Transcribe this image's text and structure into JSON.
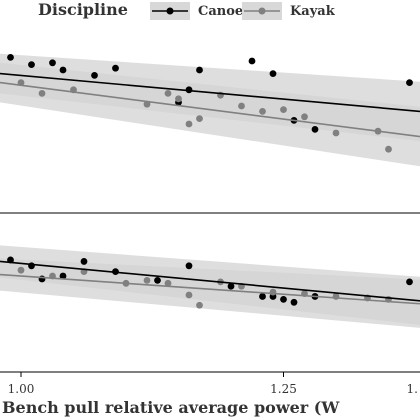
{
  "legend": {
    "title": "Discipline",
    "entries": [
      {
        "label": "Canoe",
        "color": "#000000"
      },
      {
        "label": "Kayak",
        "color": "#808080"
      }
    ]
  },
  "chart_data": [
    {
      "type": "scatter",
      "panel": "top",
      "xlim": [
        0.98,
        1.38
      ],
      "ylim": [
        0,
        10
      ],
      "grid": false,
      "ribbon_color": "#d3d3d3",
      "series": [
        {
          "name": "Canoe",
          "color": "#000000",
          "points": [
            [
              0.99,
              8.2
            ],
            [
              1.01,
              7.8
            ],
            [
              1.03,
              7.9
            ],
            [
              1.04,
              7.5
            ],
            [
              1.09,
              7.6
            ],
            [
              1.16,
              6.4
            ],
            [
              1.17,
              7.5
            ],
            [
              1.22,
              8.0
            ],
            [
              1.24,
              7.3
            ],
            [
              1.26,
              4.7
            ],
            [
              1.28,
              4.2
            ],
            [
              1.37,
              6.8
            ],
            [
              1.07,
              7.2
            ],
            [
              1.15,
              5.7
            ]
          ],
          "fit": {
            "x": [
              0.98,
              1.38
            ],
            "y": [
              7.3,
              5.2
            ]
          }
        },
        {
          "name": "Kayak",
          "color": "#808080",
          "points": [
            [
              1.0,
              6.8
            ],
            [
              1.02,
              6.2
            ],
            [
              1.05,
              6.4
            ],
            [
              1.12,
              5.6
            ],
            [
              1.14,
              6.2
            ],
            [
              1.15,
              5.9
            ],
            [
              1.16,
              4.5
            ],
            [
              1.17,
              4.8
            ],
            [
              1.19,
              6.1
            ],
            [
              1.21,
              5.5
            ],
            [
              1.23,
              5.2
            ],
            [
              1.25,
              5.3
            ],
            [
              1.27,
              4.9
            ],
            [
              1.3,
              4.0
            ],
            [
              1.34,
              4.1
            ],
            [
              1.35,
              3.1
            ]
          ],
          "fit": {
            "x": [
              0.98,
              1.38
            ],
            "y": [
              6.8,
              3.8
            ]
          }
        }
      ]
    },
    {
      "type": "scatter",
      "panel": "bottom",
      "xlim": [
        0.98,
        1.38
      ],
      "ylim": [
        0,
        10
      ],
      "grid": false,
      "xlabel": "Bench pull relative average power (W",
      "xticks": [
        "1.00",
        "1.25",
        "1."
      ],
      "ribbon_color": "#d3d3d3",
      "series": [
        {
          "name": "Canoe",
          "color": "#000000",
          "points": [
            [
              0.99,
              7.4
            ],
            [
              1.01,
              7.0
            ],
            [
              1.02,
              6.1
            ],
            [
              1.04,
              6.3
            ],
            [
              1.06,
              7.3
            ],
            [
              1.09,
              6.6
            ],
            [
              1.13,
              6.0
            ],
            [
              1.16,
              7.0
            ],
            [
              1.2,
              5.6
            ],
            [
              1.23,
              4.9
            ],
            [
              1.24,
              4.9
            ],
            [
              1.25,
              4.7
            ],
            [
              1.26,
              4.5
            ],
            [
              1.28,
              4.9
            ],
            [
              1.37,
              5.9
            ]
          ],
          "fit": {
            "x": [
              0.98,
              1.38
            ],
            "y": [
              7.3,
              4.6
            ]
          }
        },
        {
          "name": "Kayak",
          "color": "#808080",
          "points": [
            [
              1.0,
              6.7
            ],
            [
              1.03,
              6.3
            ],
            [
              1.06,
              6.6
            ],
            [
              1.1,
              5.8
            ],
            [
              1.12,
              6.0
            ],
            [
              1.14,
              5.8
            ],
            [
              1.16,
              5.0
            ],
            [
              1.17,
              4.3
            ],
            [
              1.19,
              5.9
            ],
            [
              1.21,
              5.6
            ],
            [
              1.24,
              5.2
            ],
            [
              1.27,
              5.1
            ],
            [
              1.3,
              4.9
            ],
            [
              1.33,
              4.8
            ],
            [
              1.35,
              4.7
            ]
          ],
          "fit": {
            "x": [
              0.98,
              1.38
            ],
            "y": [
              6.4,
              4.4
            ]
          }
        }
      ]
    }
  ]
}
